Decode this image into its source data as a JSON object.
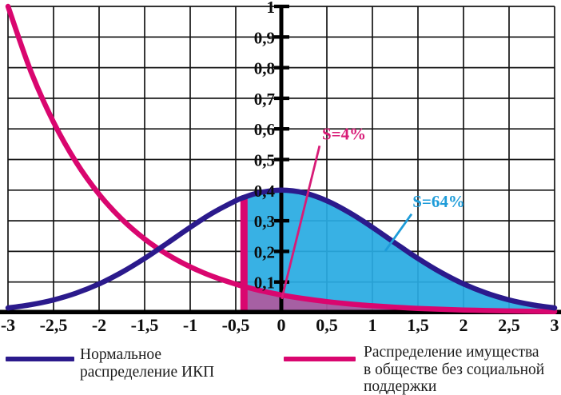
{
  "legend": {
    "items": [
      {
        "label": "Нормальное\nраспределение ИКП",
        "color": "#2b1a8c"
      },
      {
        "label": "Распределение имущества\nв обществе без социальной\nподдержки",
        "color": "#d9066f"
      }
    ]
  },
  "chart_data": {
    "type": "line",
    "title": "",
    "grid": true,
    "legend_position": "bottom",
    "x_axis": {
      "min": -3,
      "max": 3,
      "tick_values": [
        -3,
        -2.5,
        -2,
        -1.5,
        -1,
        -0.5,
        0,
        0.5,
        1,
        1.5,
        2,
        2.5,
        3
      ],
      "tick_labels": [
        "-3",
        "-2,5",
        "-2",
        "-1,5",
        "-1",
        "-0,5",
        "0",
        "0,5",
        "1",
        "1,5",
        "2",
        "2,5",
        "3"
      ]
    },
    "y_axis": {
      "min": 0,
      "max": 1,
      "tick_values": [
        0.1,
        0.2,
        0.3,
        0.4,
        0.5,
        0.6,
        0.7,
        0.8,
        0.9,
        1
      ],
      "tick_labels": [
        "0,1",
        "0,2",
        "0,3",
        "0,4",
        "0,5",
        "0,6",
        "0,7",
        "0,8",
        "0,9",
        "1"
      ],
      "decimal_separator": ","
    },
    "x": [
      -3,
      -2.75,
      -2.5,
      -2.25,
      -2,
      -1.75,
      -1.5,
      -1.25,
      -1,
      -0.75,
      -0.5,
      -0.41,
      -0.25,
      0,
      0.25,
      0.5,
      0.75,
      1,
      1.25,
      1.5,
      1.75,
      2,
      2.25,
      2.5,
      2.75,
      3
    ],
    "series": [
      {
        "name": "Нормальное распределение ИКП",
        "color": "#2b1a8c",
        "values": [
          0.0153,
          0.0258,
          0.0416,
          0.0639,
          0.0938,
          0.1318,
          0.1769,
          0.2272,
          0.2787,
          0.3262,
          0.3654,
          0.3764,
          0.391,
          0.4,
          0.391,
          0.3654,
          0.3262,
          0.2787,
          0.2272,
          0.1769,
          0.1318,
          0.0938,
          0.0639,
          0.0416,
          0.0258,
          0.0153
        ]
      },
      {
        "name": "Распределение имущества в обществе без социальной поддержки",
        "color": "#d9066f",
        "values": [
          1,
          0.7886,
          0.6219,
          0.4904,
          0.3867,
          0.305,
          0.2405,
          0.1897,
          0.1496,
          0.118,
          0.093,
          0.0854,
          0.0734,
          0.0578,
          0.0456,
          0.036,
          0.0284,
          0.0224,
          0.0176,
          0.0139,
          0.011,
          0.0087,
          0.0068,
          0.0054,
          0.0042,
          0.0033
        ]
      }
    ],
    "shaded_regions": [
      {
        "id": "area-under-normal",
        "annotation": "S=64%",
        "color": "#29abe2",
        "opacity": 0.93,
        "from_x": -0.41,
        "to_x": 3,
        "top": "series-0",
        "bottom": "series-1"
      },
      {
        "id": "area-under-wealth",
        "annotation": "S=4%",
        "color": "#a2599f",
        "opacity": 0.96,
        "from_x": -0.41,
        "to_x": 3,
        "top": "series-1",
        "bottom": "y=0"
      }
    ],
    "threshold_bar": {
      "x": -0.41,
      "color": "#d9066f"
    },
    "annotations": [
      {
        "text": "S=4%",
        "color": "#d81b77",
        "text_pos": [
          0.447,
          0.565
        ],
        "line": [
          [
            0.42,
            0.545
          ],
          [
            0.005,
            0.045
          ]
        ]
      },
      {
        "text": "S=64%",
        "color": "#1e9cd9",
        "text_pos": [
          1.44,
          0.345
        ],
        "line": [
          [
            1.43,
            0.322
          ],
          [
            1.14,
            0.201
          ]
        ]
      }
    ]
  }
}
